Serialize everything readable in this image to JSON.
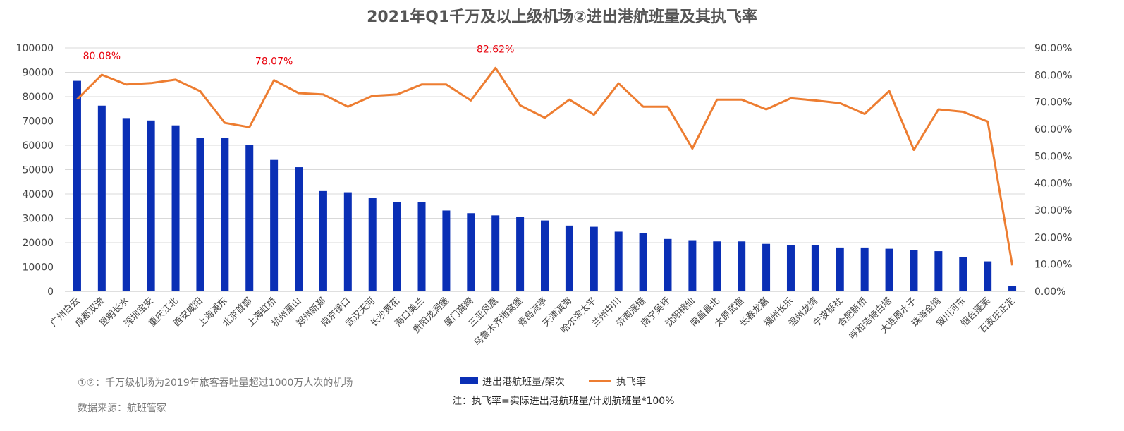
{
  "chart_data": {
    "type": "bar-line",
    "title": "2021年Q1千万及以上级机场②进出港航班量及其执飞率",
    "categories": [
      "广州白云",
      "成都双流",
      "昆明长水",
      "深圳宝安",
      "重庆江北",
      "西安咸阳",
      "上海浦东",
      "北京首都",
      "上海虹桥",
      "杭州萧山",
      "郑州新郑",
      "南京禄口",
      "武汉天河",
      "长沙黄花",
      "海口美兰",
      "贵阳龙洞堡",
      "厦门高崎",
      "三亚凤凰",
      "乌鲁木齐地窝堡",
      "青岛流亭",
      "天津滨海",
      "哈尔滨太平",
      "兰州中川",
      "济南遥墙",
      "南宁吴圩",
      "沈阳桃仙",
      "南昌昌北",
      "太原武宿",
      "长春龙嘉",
      "福州长乐",
      "温州龙湾",
      "宁波栎社",
      "合肥新桥",
      "呼和浩特白塔",
      "大连周水子",
      "珠海金湾",
      "银川河东",
      "烟台蓬莱",
      "石家庄正定"
    ],
    "series": [
      {
        "name": "进出港航班量/架次",
        "type": "bar",
        "axis": "left",
        "color": "#0a2fb5",
        "values": [
          86500,
          76300,
          71200,
          70200,
          68200,
          63100,
          63000,
          60000,
          54000,
          51000,
          41200,
          40700,
          38300,
          36800,
          36700,
          33200,
          32100,
          31200,
          30700,
          29100,
          27000,
          26500,
          24500,
          24000,
          21500,
          21000,
          20500,
          20500,
          19500,
          19000,
          19000,
          18000,
          18000,
          17500,
          17000,
          16500,
          14000,
          12300,
          2200
        ]
      },
      {
        "name": "执飞率",
        "type": "line",
        "axis": "right",
        "color": "#ed7d31",
        "values": [
          71.0,
          80.08,
          76.5,
          77.0,
          78.3,
          74.0,
          62.3,
          60.7,
          78.07,
          73.3,
          72.8,
          68.3,
          72.3,
          72.8,
          76.5,
          76.5,
          70.6,
          82.62,
          68.8,
          64.2,
          70.9,
          65.3,
          76.9,
          68.3,
          68.3,
          52.8,
          70.9,
          70.9,
          67.3,
          71.4,
          70.6,
          69.6,
          65.6,
          74.1,
          52.3,
          67.3,
          66.4,
          62.8,
          9.6
        ]
      }
    ],
    "left_axis": {
      "min": 0,
      "max": 100000,
      "step": 10000
    },
    "right_axis": {
      "min": 0,
      "max": 90,
      "step": 10,
      "format": "percent-2dp"
    },
    "annotations": [
      {
        "category_index": 1,
        "label": "80.08%"
      },
      {
        "category_index": 8,
        "label": "78.07%"
      },
      {
        "category_index": 17,
        "label": "82.62%"
      }
    ],
    "grid": "horizontal",
    "legend_position": "bottom-center"
  },
  "notes": {
    "footnote": "①②：千万级机场为2019年旅客吞吐量超过1000万人次的机场",
    "source": "数据来源：航班管家",
    "definition": "注：执飞率=实际进出港航班量/计划航班量*100%"
  }
}
